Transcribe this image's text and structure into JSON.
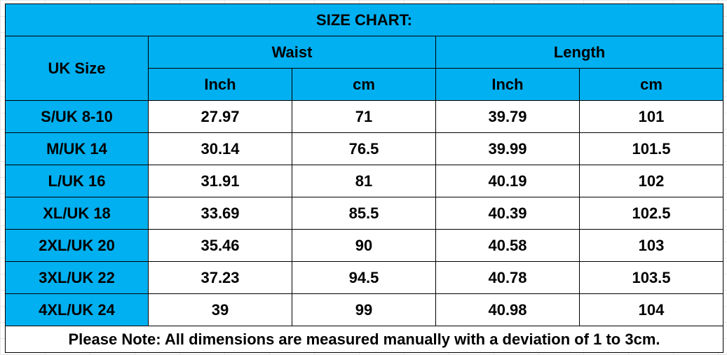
{
  "table": {
    "title": "SIZE CHART:",
    "headers": {
      "size": "UK Size",
      "groups": [
        {
          "name": "Waist",
          "units": [
            "Inch",
            "cm"
          ]
        },
        {
          "name": "Length",
          "units": [
            "Inch",
            "cm"
          ]
        }
      ]
    },
    "rows": [
      [
        "S/UK 8-10",
        27.97,
        71,
        39.79,
        101
      ],
      [
        "M/UK 14",
        30.14,
        76.5,
        39.99,
        101.5
      ],
      [
        "L/UK 16",
        31.91,
        81,
        40.19,
        102
      ],
      [
        "XL/UK 18",
        33.69,
        85.5,
        40.39,
        102.5
      ],
      [
        "2XL/UK 20",
        35.46,
        90,
        40.58,
        103
      ],
      [
        "3XL/UK 22",
        37.23,
        94.5,
        40.78,
        103.5
      ],
      [
        "4XL/UK 24",
        39,
        99,
        40.98,
        104
      ]
    ],
    "note": "Please Note: All dimensions are measured manually with a deviation of 1 to 3cm."
  }
}
